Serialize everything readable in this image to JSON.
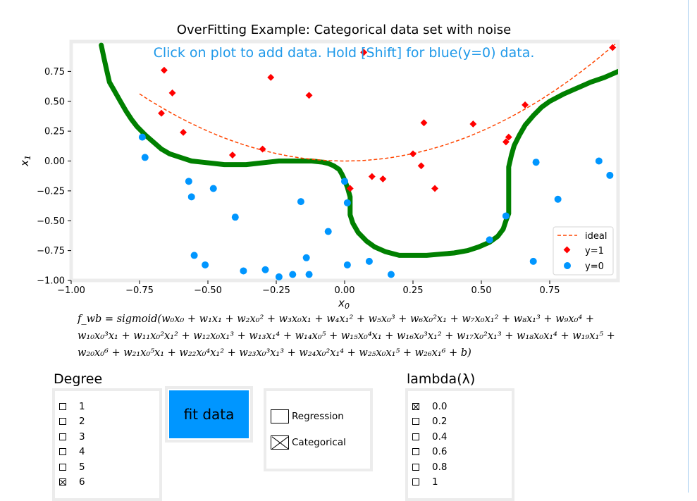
{
  "chart_data": {
    "type": "scatter",
    "title": "OverFitting Example: Categorical data set with noise",
    "annotation": "Click on plot to add data. Hold [Shift] for blue(y=0) data.",
    "xlim": [
      -1.0,
      1.0
    ],
    "ylim": [
      -1.0,
      1.0
    ],
    "x_ticks": [
      "−1.00",
      "−0.75",
      "−0.50",
      "−0.25",
      "0.00",
      "0.25",
      "0.50",
      "0.75"
    ],
    "y_ticks": [
      "−1.00",
      "−0.75",
      "−0.50",
      "−0.25",
      "0.00",
      "0.25",
      "0.50",
      "0.75"
    ],
    "legend_position": "bottom-right",
    "legend": [
      "ideal",
      "y=1",
      "y=0"
    ],
    "colors": {
      "pos": "#ff0000",
      "neg": "#0096ff",
      "ideal": "#ff4500",
      "fit": "#008000"
    },
    "points_y1": [
      [
        -0.66,
        0.76
      ],
      [
        -0.63,
        0.57
      ],
      [
        -0.67,
        0.4
      ],
      [
        -0.59,
        0.24
      ],
      [
        -0.41,
        0.05
      ],
      [
        -0.3,
        0.1
      ],
      [
        -0.27,
        0.7
      ],
      [
        -0.13,
        0.55
      ],
      [
        0.07,
        0.91
      ],
      [
        0.02,
        -0.23
      ],
      [
        0.1,
        -0.13
      ],
      [
        0.14,
        -0.15
      ],
      [
        0.25,
        0.06
      ],
      [
        0.28,
        -0.04
      ],
      [
        0.29,
        0.32
      ],
      [
        0.33,
        -0.23
      ],
      [
        0.47,
        0.31
      ],
      [
        0.59,
        0.16
      ],
      [
        0.6,
        0.2
      ],
      [
        0.66,
        0.47
      ],
      [
        0.98,
        0.95
      ]
    ],
    "points_y0": [
      [
        -0.74,
        0.2
      ],
      [
        -0.73,
        0.03
      ],
      [
        -0.57,
        -0.17
      ],
      [
        -0.56,
        -0.3
      ],
      [
        -0.55,
        -0.79
      ],
      [
        -0.51,
        -0.87
      ],
      [
        -0.48,
        -0.23
      ],
      [
        -0.4,
        -0.47
      ],
      [
        -0.37,
        -0.92
      ],
      [
        -0.29,
        -0.91
      ],
      [
        -0.24,
        -0.97
      ],
      [
        -0.19,
        -0.95
      ],
      [
        -0.16,
        -0.34
      ],
      [
        -0.14,
        -0.81
      ],
      [
        -0.13,
        -0.95
      ],
      [
        -0.06,
        -0.59
      ],
      [
        0.0,
        -0.17
      ],
      [
        0.01,
        -0.35
      ],
      [
        0.01,
        -0.87
      ],
      [
        0.09,
        -0.84
      ],
      [
        0.17,
        -0.95
      ],
      [
        0.53,
        -0.66
      ],
      [
        0.59,
        -0.46
      ],
      [
        0.69,
        -0.84
      ],
      [
        0.7,
        -0.01
      ],
      [
        0.78,
        -0.32
      ],
      [
        0.93,
        0.0
      ],
      [
        0.95,
        -0.77
      ],
      [
        0.97,
        -0.12
      ]
    ],
    "ideal_curve": {
      "expression": "x1 = x0^2",
      "x_range": [
        -0.75,
        1.0
      ]
    },
    "fit_curve": [
      [
        -0.89,
        0.97
      ],
      [
        -0.88,
        0.86
      ],
      [
        -0.87,
        0.76
      ],
      [
        -0.86,
        0.66
      ],
      [
        -0.84,
        0.58
      ],
      [
        -0.82,
        0.5
      ],
      [
        -0.8,
        0.42
      ],
      [
        -0.78,
        0.35
      ],
      [
        -0.76,
        0.29
      ],
      [
        -0.73,
        0.22
      ],
      [
        -0.7,
        0.16
      ],
      [
        -0.67,
        0.1
      ],
      [
        -0.64,
        0.06
      ],
      [
        -0.6,
        0.03
      ],
      [
        -0.56,
        0.0
      ],
      [
        -0.52,
        -0.01
      ],
      [
        -0.48,
        -0.02
      ],
      [
        -0.44,
        -0.03
      ],
      [
        -0.4,
        -0.03
      ],
      [
        -0.36,
        -0.03
      ],
      [
        -0.32,
        -0.02
      ],
      [
        -0.28,
        -0.01
      ],
      [
        -0.24,
        0.0
      ],
      [
        -0.2,
        0.0
      ],
      [
        -0.16,
        0.0
      ],
      [
        -0.12,
        0.0
      ],
      [
        -0.08,
        -0.01
      ],
      [
        -0.06,
        -0.02
      ],
      [
        -0.04,
        -0.04
      ],
      [
        -0.02,
        -0.07
      ],
      [
        -0.01,
        -0.11
      ],
      [
        0.0,
        -0.16
      ],
      [
        0.01,
        -0.22
      ],
      [
        0.02,
        -0.3
      ],
      [
        0.02,
        -0.38
      ],
      [
        0.02,
        -0.45
      ],
      [
        0.03,
        -0.52
      ],
      [
        0.05,
        -0.6
      ],
      [
        0.08,
        -0.67
      ],
      [
        0.11,
        -0.72
      ],
      [
        0.15,
        -0.76
      ],
      [
        0.2,
        -0.79
      ],
      [
        0.25,
        -0.79
      ],
      [
        0.3,
        -0.79
      ],
      [
        0.35,
        -0.78
      ],
      [
        0.4,
        -0.77
      ],
      [
        0.45,
        -0.75
      ],
      [
        0.49,
        -0.72
      ],
      [
        0.53,
        -0.68
      ],
      [
        0.56,
        -0.63
      ],
      [
        0.58,
        -0.57
      ],
      [
        0.59,
        -0.5
      ],
      [
        0.6,
        -0.44
      ],
      [
        0.6,
        -0.35
      ],
      [
        0.6,
        -0.25
      ],
      [
        0.6,
        -0.15
      ],
      [
        0.6,
        -0.05
      ],
      [
        0.61,
        0.05
      ],
      [
        0.62,
        0.13
      ],
      [
        0.64,
        0.22
      ],
      [
        0.66,
        0.3
      ],
      [
        0.69,
        0.38
      ],
      [
        0.72,
        0.45
      ],
      [
        0.75,
        0.5
      ],
      [
        0.8,
        0.56
      ],
      [
        0.85,
        0.61
      ],
      [
        0.9,
        0.66
      ],
      [
        0.95,
        0.7
      ],
      [
        1.0,
        0.75
      ]
    ]
  },
  "formula_lines": [
    "f_wb = sigmoid(w₀x₀ + w₁x₁ + w₂x₀² + w₃x₀x₁ + w₄x₁² + w₅x₀³ + w₆x₀²x₁ + w₇x₀x₁² + w₈x₁³ + w₉x₀⁴ +",
    "w₁₀x₀³x₁ + w₁₁x₀²x₁² + w₁₂x₀x₁³ + w₁₃x₁⁴ + w₁₄x₀⁵ + w₁₅x₀⁴x₁ + w₁₆x₀³x₁² + w₁₇x₀²x₁³ + w₁₈x₀x₁⁴ + w₁₉x₁⁵ +",
    "w₂₀x₀⁶ + w₂₁x₀⁵x₁ + w₂₂x₀⁴x₁² + w₂₃x₀³x₁³ + w₂₄x₀²x₁⁴ + w₂₅x₀x₁⁵ + w₂₆x₁⁶ + b)"
  ],
  "degree": {
    "label": "Degree",
    "options": [
      {
        "label": "1",
        "checked": false
      },
      {
        "label": "2",
        "checked": false
      },
      {
        "label": "3",
        "checked": false
      },
      {
        "label": "4",
        "checked": false
      },
      {
        "label": "5",
        "checked": false
      },
      {
        "label": "6",
        "checked": true
      }
    ]
  },
  "fit_button": {
    "label": "fit data"
  },
  "mode": {
    "options": [
      {
        "label": "Regression",
        "checked": false
      },
      {
        "label": "Categorical",
        "checked": true
      }
    ]
  },
  "lambda": {
    "label": "lambda(λ)",
    "options": [
      {
        "label": "0.0",
        "checked": true
      },
      {
        "label": "0.2",
        "checked": false
      },
      {
        "label": "0.4",
        "checked": false
      },
      {
        "label": "0.6",
        "checked": false
      },
      {
        "label": "0.8",
        "checked": false
      },
      {
        "label": "1",
        "checked": false
      }
    ]
  }
}
